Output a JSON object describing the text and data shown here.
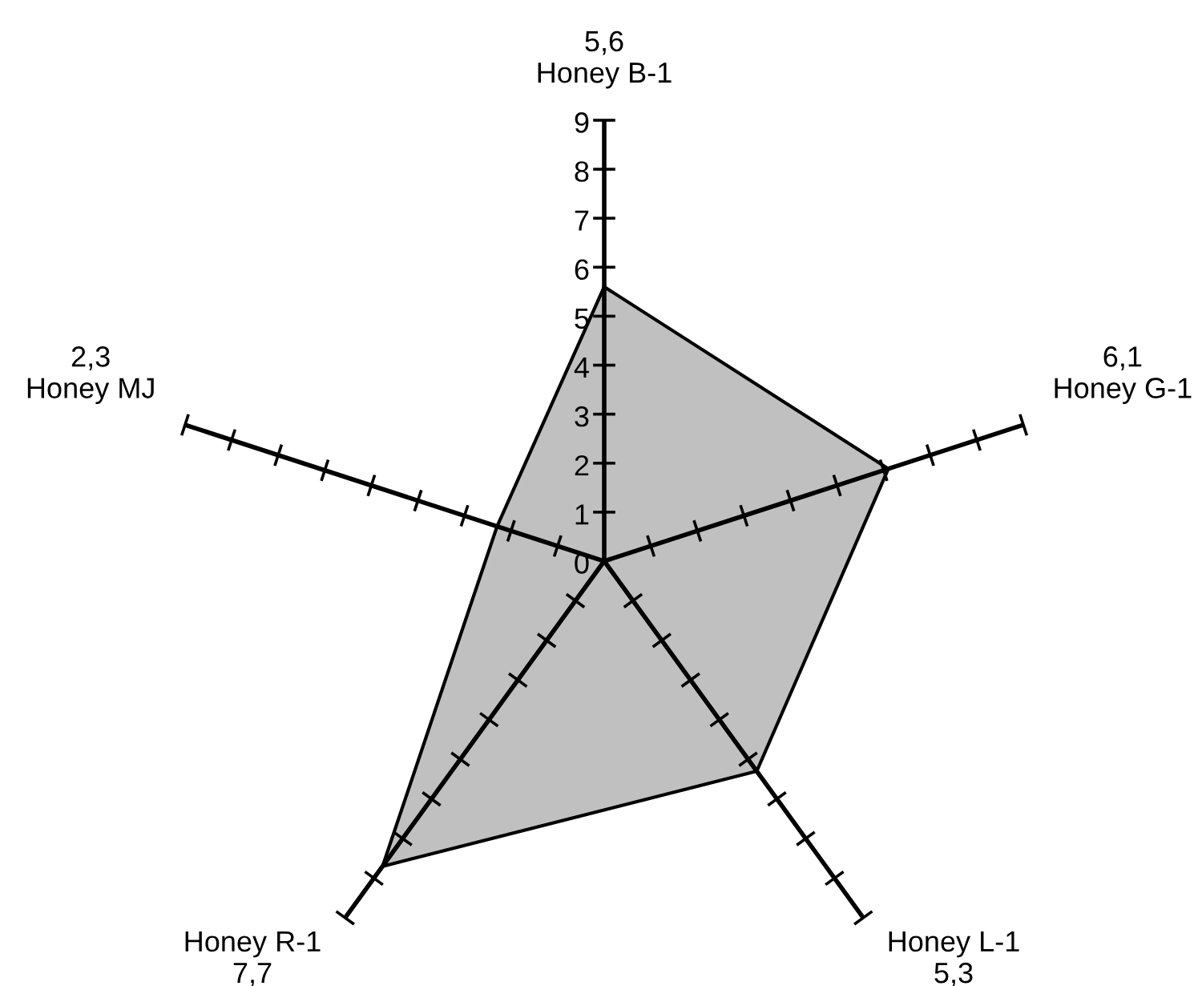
{
  "chart_data": {
    "type": "radar",
    "categories": [
      "Honey B-1",
      "Honey G-1",
      "Honey L-1",
      "Honey R-1",
      "Honey MJ"
    ],
    "series": [
      {
        "color": "#c0c0c0",
        "values": [
          5.6,
          6.1,
          5.3,
          7.7,
          2.3
        ]
      }
    ],
    "annotations": [
      "5,6",
      "6,1",
      "5,3",
      "7,7",
      "2,3"
    ],
    "ylim": [
      0,
      9
    ],
    "yticks": [
      0,
      1,
      2,
      3,
      4,
      5,
      6,
      7,
      8,
      9
    ]
  }
}
